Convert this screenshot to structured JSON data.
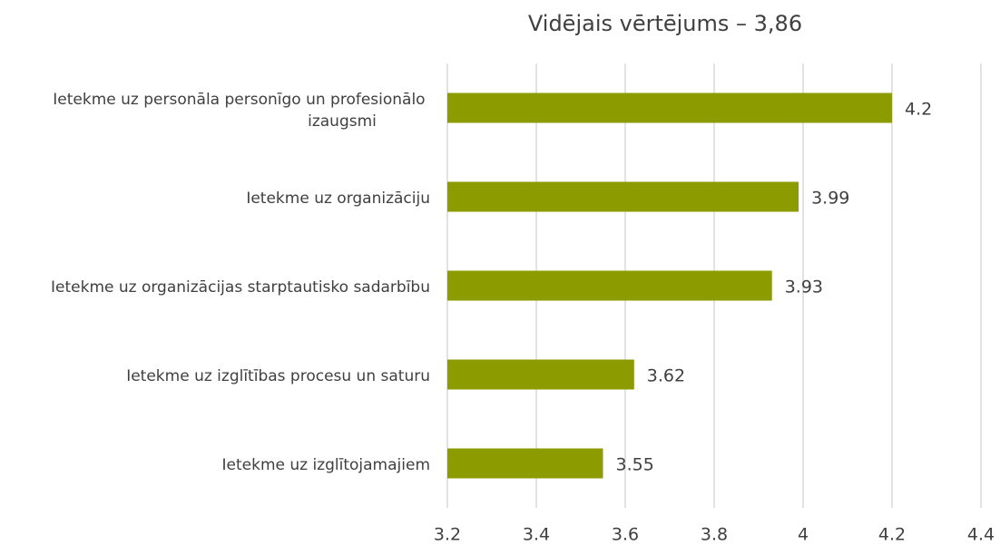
{
  "chart_data": {
    "type": "bar",
    "orientation": "horizontal",
    "title": "Vidējais vērtējums – 3,86",
    "categories": [
      "Ietekme uz personāla personīgo un profesionālo izaugsmi",
      "Ietekme uz organizāciju",
      "Ietekme uz organizācijas starptautisko sadarbību",
      "Ietekme uz izglītības procesu un saturu",
      "Ietekme uz izglītojamajiem"
    ],
    "values": [
      4.2,
      3.99,
      3.93,
      3.62,
      3.55
    ],
    "color": "#8c9b00",
    "xlim": [
      3.2,
      4.4
    ],
    "xticks": [
      3.2,
      3.4,
      3.6,
      3.8,
      4,
      4.2,
      4.4
    ],
    "grid": true
  }
}
